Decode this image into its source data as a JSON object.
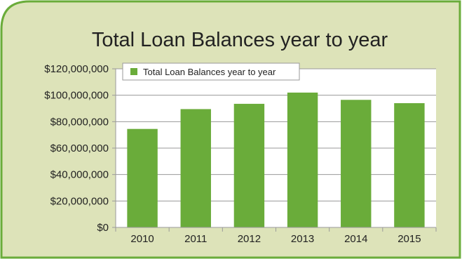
{
  "colors": {
    "panel_bg": "#dde3b9",
    "panel_border": "#6aac3a",
    "plot_bg": "#ffffff",
    "bar": "#6aac3a",
    "grid": "#9a9a9a"
  },
  "chart_data": {
    "type": "bar",
    "title": "Total Loan Balances year to year",
    "categories": [
      "2010",
      "2011",
      "2012",
      "2013",
      "2014",
      "2015"
    ],
    "series": [
      {
        "name": "Total Loan Balances year to year",
        "values": [
          74500000,
          89500000,
          93500000,
          102000000,
          96500000,
          94000000
        ]
      }
    ],
    "ylim": [
      0,
      120000000
    ],
    "yticks": [
      0,
      20000000,
      40000000,
      60000000,
      80000000,
      100000000,
      120000000
    ],
    "ytick_labels": [
      "$0",
      "$20,000,000",
      "$40,000,000",
      "$60,000,000",
      "$80,000,000",
      "$100,000,000",
      "$120,000,000"
    ],
    "grid": true,
    "legend": "top-left"
  }
}
